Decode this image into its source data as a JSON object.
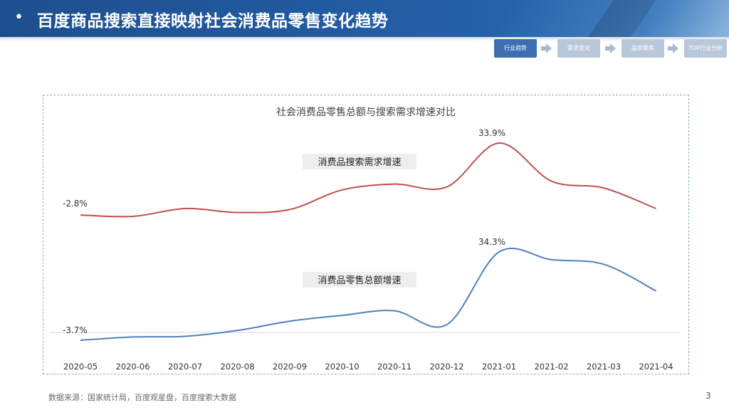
{
  "header": {
    "title": "百度商品搜索直接映射社会消费品零售变化趋势",
    "bullet": "•"
  },
  "steps": [
    {
      "label": "行业趋势",
      "active": true
    },
    {
      "label": "需求变化",
      "active": false
    },
    {
      "label": "品类聚焦",
      "active": false
    },
    {
      "label": "TOP行业分析",
      "active": false
    }
  ],
  "colors": {
    "search_line": "#c0504d",
    "retail_line": "#4f81bd",
    "accent": "#1d4f8f"
  },
  "chart_data": {
    "type": "line",
    "title": "社会消费品零售总额与搜索需求增速对比",
    "categories": [
      "2020-05",
      "2020-06",
      "2020-07",
      "2020-08",
      "2020-09",
      "2020-10",
      "2020-11",
      "2020-12",
      "2021-01",
      "2021-02",
      "2021-03",
      "2021-04"
    ],
    "series": [
      {
        "name": "消费品搜索需求增速",
        "color": "#c0504d",
        "values": [
          -2.8,
          -3.5,
          0.5,
          -1.5,
          0.0,
          10.0,
          13.0,
          11.5,
          33.9,
          14.5,
          11.0,
          0.5
        ],
        "first_label": "-2.8%",
        "peak_label": "33.9%"
      },
      {
        "name": "消费品零售总额增速",
        "color": "#4f81bd",
        "values": [
          -3.7,
          -2.3,
          -2.0,
          0.5,
          4.5,
          7.0,
          9.0,
          3.0,
          34.3,
          31.0,
          29.0,
          17.5
        ],
        "first_label": "-3.7%",
        "peak_label": "34.3%"
      }
    ]
  },
  "footer": {
    "source": "数据来源：国家统计局，百度观星盘，百度搜索大数据",
    "page_number": "3"
  }
}
